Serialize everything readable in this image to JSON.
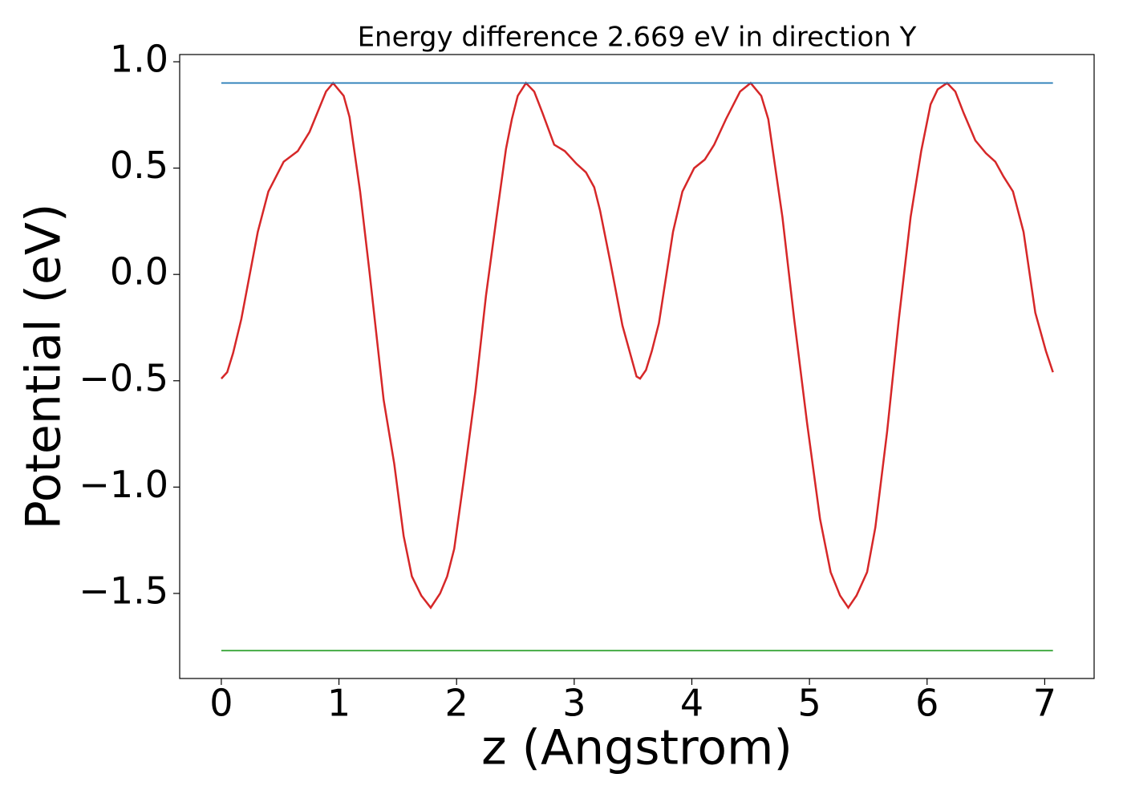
{
  "chart_data": {
    "type": "line",
    "title": "Energy difference 2.669 eV in direction Y",
    "x_label": "z (Angstrom)",
    "y_label": "Potential (eV)",
    "xlim": [
      -0.354,
      7.42
    ],
    "ylim": [
      -1.9,
      1.034
    ],
    "xticks": [
      0,
      1,
      2,
      3,
      4,
      5,
      6,
      7
    ],
    "yticks": [
      {
        "value": -1.5,
        "label": "−1.5"
      },
      {
        "value": -1.0,
        "label": "−1.0"
      },
      {
        "value": -0.5,
        "label": "−0.5"
      },
      {
        "value": 0.0,
        "label": "0.0"
      },
      {
        "value": 0.5,
        "label": "0.5"
      },
      {
        "value": 1.0,
        "label": "1.0"
      }
    ],
    "grid": false,
    "series": [
      {
        "color": "#d62728",
        "x": [
          0,
          0.05,
          0.1,
          0.17,
          0.31,
          0.4,
          0.53,
          0.65,
          0.75,
          0.89,
          0.95,
          1.04,
          1.09,
          1.18,
          1.26,
          1.38,
          1.47,
          1.55,
          1.62,
          1.7,
          1.78,
          1.86,
          1.92,
          1.98,
          2.06,
          2.16,
          2.25,
          2.34,
          2.42,
          2.47,
          2.52,
          2.59,
          2.66,
          2.73,
          2.83,
          2.92,
          3.02,
          3.1,
          3.17,
          3.22,
          3.31,
          3.41,
          3.48,
          3.53,
          3.56,
          3.61,
          3.66,
          3.72,
          3.84,
          3.92,
          4.02,
          4.11,
          4.19,
          4.29,
          4.41,
          4.5,
          4.59,
          4.65,
          4.71,
          4.77,
          4.87,
          4.98,
          5.09,
          5.18,
          5.26,
          5.33,
          5.4,
          5.49,
          5.56,
          5.66,
          5.76,
          5.86,
          5.95,
          6.03,
          6.09,
          6.17,
          6.24,
          6.31,
          6.41,
          6.5,
          6.58,
          6.65,
          6.73,
          6.82,
          6.92,
          7.01,
          7.07
        ],
        "values": [
          -0.49,
          -0.46,
          -0.37,
          -0.21,
          0.2,
          0.39,
          0.53,
          0.58,
          0.67,
          0.86,
          0.9,
          0.84,
          0.74,
          0.39,
          0.01,
          -0.59,
          -0.89,
          -1.23,
          -1.42,
          -1.51,
          -1.567,
          -1.5,
          -1.42,
          -1.29,
          -0.97,
          -0.55,
          -0.1,
          0.27,
          0.59,
          0.73,
          0.84,
          0.9,
          0.86,
          0.76,
          0.61,
          0.58,
          0.52,
          0.48,
          0.41,
          0.3,
          0.05,
          -0.24,
          -0.38,
          -0.48,
          -0.49,
          -0.45,
          -0.36,
          -0.23,
          0.2,
          0.39,
          0.5,
          0.54,
          0.61,
          0.73,
          0.86,
          0.9,
          0.84,
          0.73,
          0.5,
          0.27,
          -0.21,
          -0.7,
          -1.15,
          -1.4,
          -1.51,
          -1.567,
          -1.51,
          -1.4,
          -1.19,
          -0.74,
          -0.21,
          0.27,
          0.58,
          0.8,
          0.87,
          0.9,
          0.86,
          0.76,
          0.63,
          0.57,
          0.53,
          0.46,
          0.39,
          0.2,
          -0.18,
          -0.36,
          -0.46
        ]
      },
      {
        "color": "#1f77b4",
        "x": [
          0,
          7.07
        ],
        "values": [
          0.9,
          0.9
        ]
      },
      {
        "color": "#2ca02c",
        "x": [
          0,
          7.07
        ],
        "values": [
          -1.769,
          -1.769
        ]
      }
    ]
  }
}
